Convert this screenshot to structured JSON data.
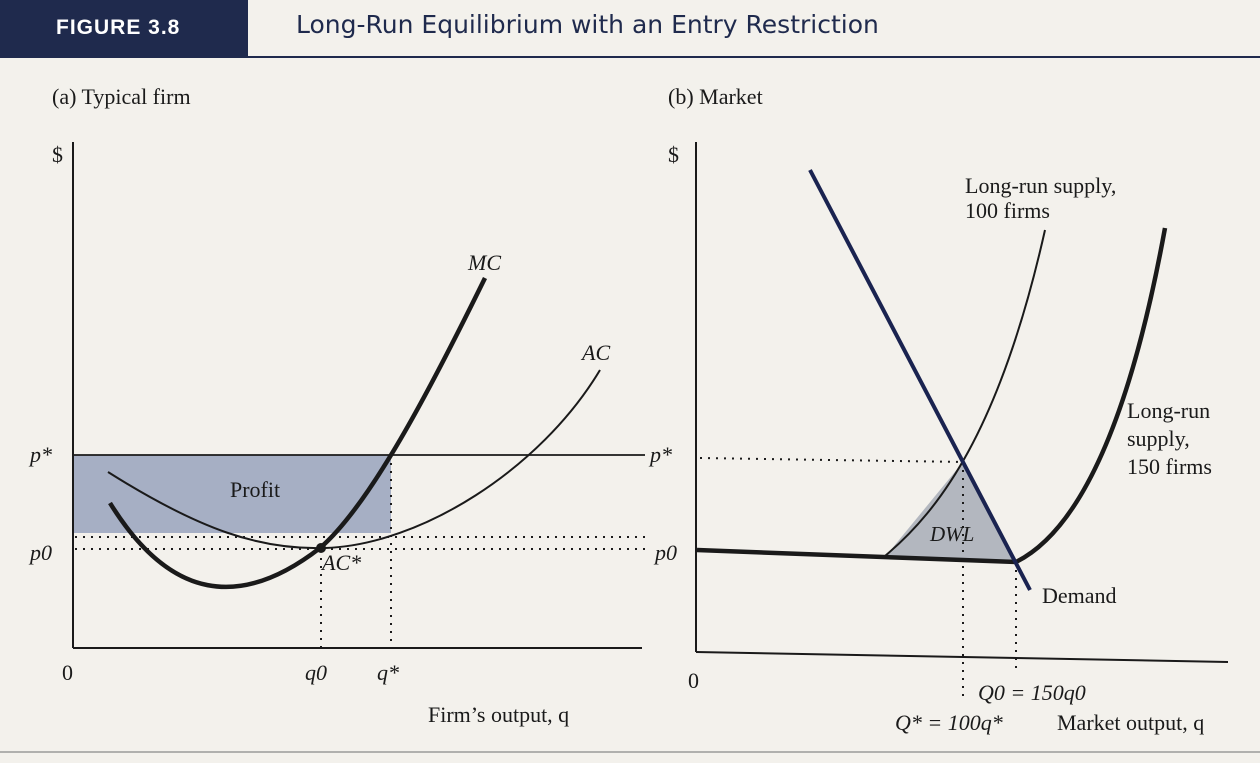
{
  "figure": {
    "label": "FIGURE 3.8",
    "title": "Long-Run Equilibrium with an Entry Restriction"
  },
  "panel_a": {
    "title": "(a) Typical firm",
    "y_axis_label": "$",
    "x_axis_label": "Firm’s output, q",
    "origin": "0",
    "price_high": "p*",
    "price_low": "p0",
    "qty_low": "q0",
    "qty_high": "q*",
    "curve_mc": "MC",
    "curve_ac": "AC",
    "point_label": "AC*",
    "area_label": "Profit"
  },
  "panel_b": {
    "title": "(b) Market",
    "y_axis_label": "$",
    "origin": "0",
    "price_high": "p*",
    "price_low": "p0",
    "supply_100_line1": "Long-run supply,",
    "supply_100_line2": "100 firms",
    "supply_150_line1": "Long-run",
    "supply_150_line2": "supply,",
    "supply_150_line3": "150 firms",
    "demand_label": "Demand",
    "area_label": "DWL",
    "q0_eq": "Q0 = 150q0",
    "qstar_eq": "Q* = 100q*",
    "x_axis_label": "Market output, q"
  },
  "colors": {
    "header_navy": "#1f2a4d",
    "demand_navy": "#1a2350",
    "profit_fill": "#a6afc4",
    "dwl_fill": "#b3b7bf"
  }
}
